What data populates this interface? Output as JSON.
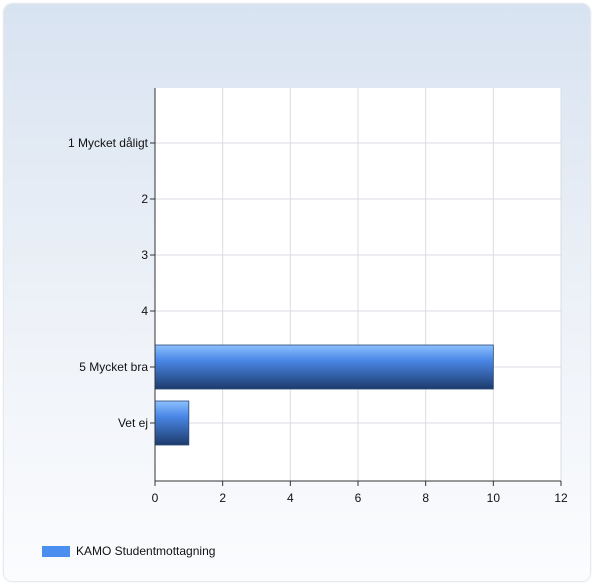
{
  "chart_data": {
    "type": "bar",
    "orientation": "horizontal",
    "categories": [
      "1 Mycket dåligt",
      "2",
      "3",
      "4",
      "5 Mycket bra",
      "Vet ej"
    ],
    "series": [
      {
        "name": "KAMO Studentmottagning",
        "values": [
          0,
          0,
          0,
          0,
          10,
          1
        ],
        "color": "#4a8ef0"
      }
    ],
    "x_ticks": [
      "0",
      "2",
      "4",
      "6",
      "8",
      "10",
      "12"
    ],
    "xlim": [
      0,
      12
    ],
    "title": "",
    "xlabel": "",
    "ylabel": "",
    "grid": true,
    "legend_position": "bottom-left"
  }
}
